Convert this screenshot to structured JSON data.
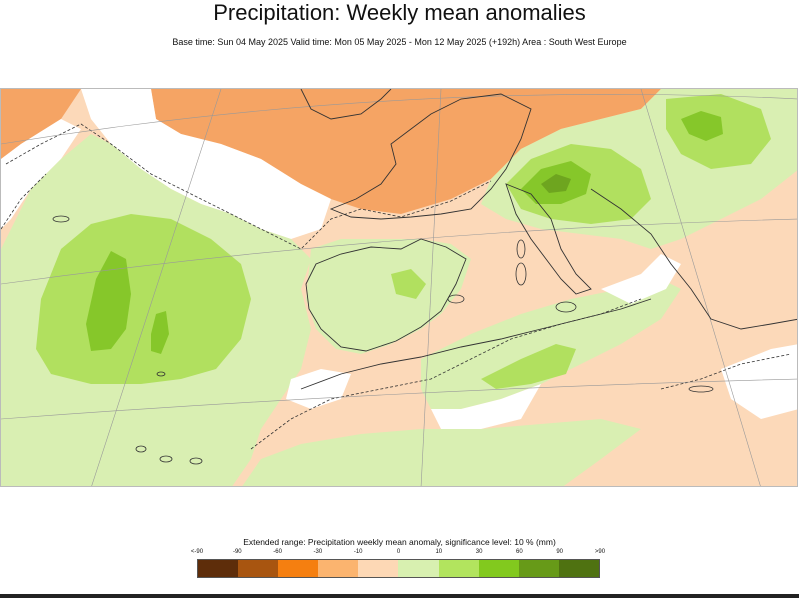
{
  "title": "Precipitation: Weekly mean anomalies",
  "subtitle": "Base time: Sun 04 May 2025 Valid time: Mon 05 May 2025 - Mon 12 May 2025 (+192h) Area : South West Europe",
  "legend": {
    "title": "Extended range: Precipitation weekly mean anomaly, significance level: 10 % (mm)",
    "ticks": [
      "<-90",
      "-90",
      "-60",
      "-30",
      "-10",
      "0",
      "10",
      "30",
      "60",
      "90",
      ">90"
    ],
    "colors": [
      "#5e2d0a",
      "#a85510",
      "#f57f10",
      "#fbb46f",
      "#fdd8b5",
      "#d8f0b0",
      "#b2e45e",
      "#82c91e",
      "#679a18",
      "#4f7211"
    ]
  },
  "map": {
    "region": "South West Europe",
    "colors": {
      "dry_strong": "#f5a464",
      "dry_moderate": "#f9c79c",
      "dry_weak": "#fcd9b9",
      "neutral": "#ffffff",
      "wet_weak": "#d9efb2",
      "wet_moderate": "#b1e05f",
      "wet_strong": "#86c72a",
      "wet_very_strong": "#6ea51f",
      "coast": "#333333",
      "graticule": "#999999"
    }
  }
}
